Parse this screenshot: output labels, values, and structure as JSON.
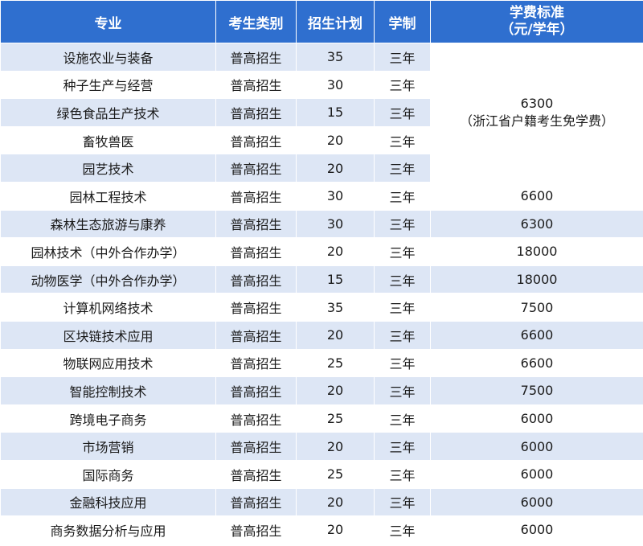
{
  "headers": {
    "major": "专业",
    "category": "考生类别",
    "plan": "招生计划",
    "years": "学制",
    "fee_line1": "学费标准",
    "fee_line2": "（元/学年）"
  },
  "merged_fee": {
    "amount": "6300",
    "note": "（浙江省户籍考生免学费）"
  },
  "rows": [
    {
      "major": "设施农业与装备",
      "category": "普高招生",
      "plan": "35",
      "years": "三年"
    },
    {
      "major": "种子生产与经营",
      "category": "普高招生",
      "plan": "30",
      "years": "三年"
    },
    {
      "major": "绿色食品生产技术",
      "category": "普高招生",
      "plan": "15",
      "years": "三年"
    },
    {
      "major": "畜牧兽医",
      "category": "普高招生",
      "plan": "20",
      "years": "三年"
    },
    {
      "major": "园艺技术",
      "category": "普高招生",
      "plan": "20",
      "years": "三年"
    },
    {
      "major": "园林工程技术",
      "category": "普高招生",
      "plan": "30",
      "years": "三年",
      "fee": "6600"
    },
    {
      "major": "森林生态旅游与康养",
      "category": "普高招生",
      "plan": "30",
      "years": "三年",
      "fee": "6300"
    },
    {
      "major": "园林技术（中外合作办学）",
      "category": "普高招生",
      "plan": "20",
      "years": "三年",
      "fee": "18000"
    },
    {
      "major": "动物医学（中外合作办学）",
      "category": "普高招生",
      "plan": "15",
      "years": "三年",
      "fee": "18000"
    },
    {
      "major": "计算机网络技术",
      "category": "普高招生",
      "plan": "35",
      "years": "三年",
      "fee": "7500"
    },
    {
      "major": "区块链技术应用",
      "category": "普高招生",
      "plan": "20",
      "years": "三年",
      "fee": "6600"
    },
    {
      "major": "物联网应用技术",
      "category": "普高招生",
      "plan": "25",
      "years": "三年",
      "fee": "6600"
    },
    {
      "major": "智能控制技术",
      "category": "普高招生",
      "plan": "20",
      "years": "三年",
      "fee": "7500"
    },
    {
      "major": "跨境电子商务",
      "category": "普高招生",
      "plan": "25",
      "years": "三年",
      "fee": "6000"
    },
    {
      "major": "市场营销",
      "category": "普高招生",
      "plan": "20",
      "years": "三年",
      "fee": "6000"
    },
    {
      "major": "国际商务",
      "category": "普高招生",
      "plan": "25",
      "years": "三年",
      "fee": "6000"
    },
    {
      "major": "金融科技应用",
      "category": "普高招生",
      "plan": "20",
      "years": "三年",
      "fee": "6000"
    },
    {
      "major": "商务数据分析与应用",
      "category": "普高招生",
      "plan": "20",
      "years": "三年",
      "fee": "6000"
    }
  ]
}
